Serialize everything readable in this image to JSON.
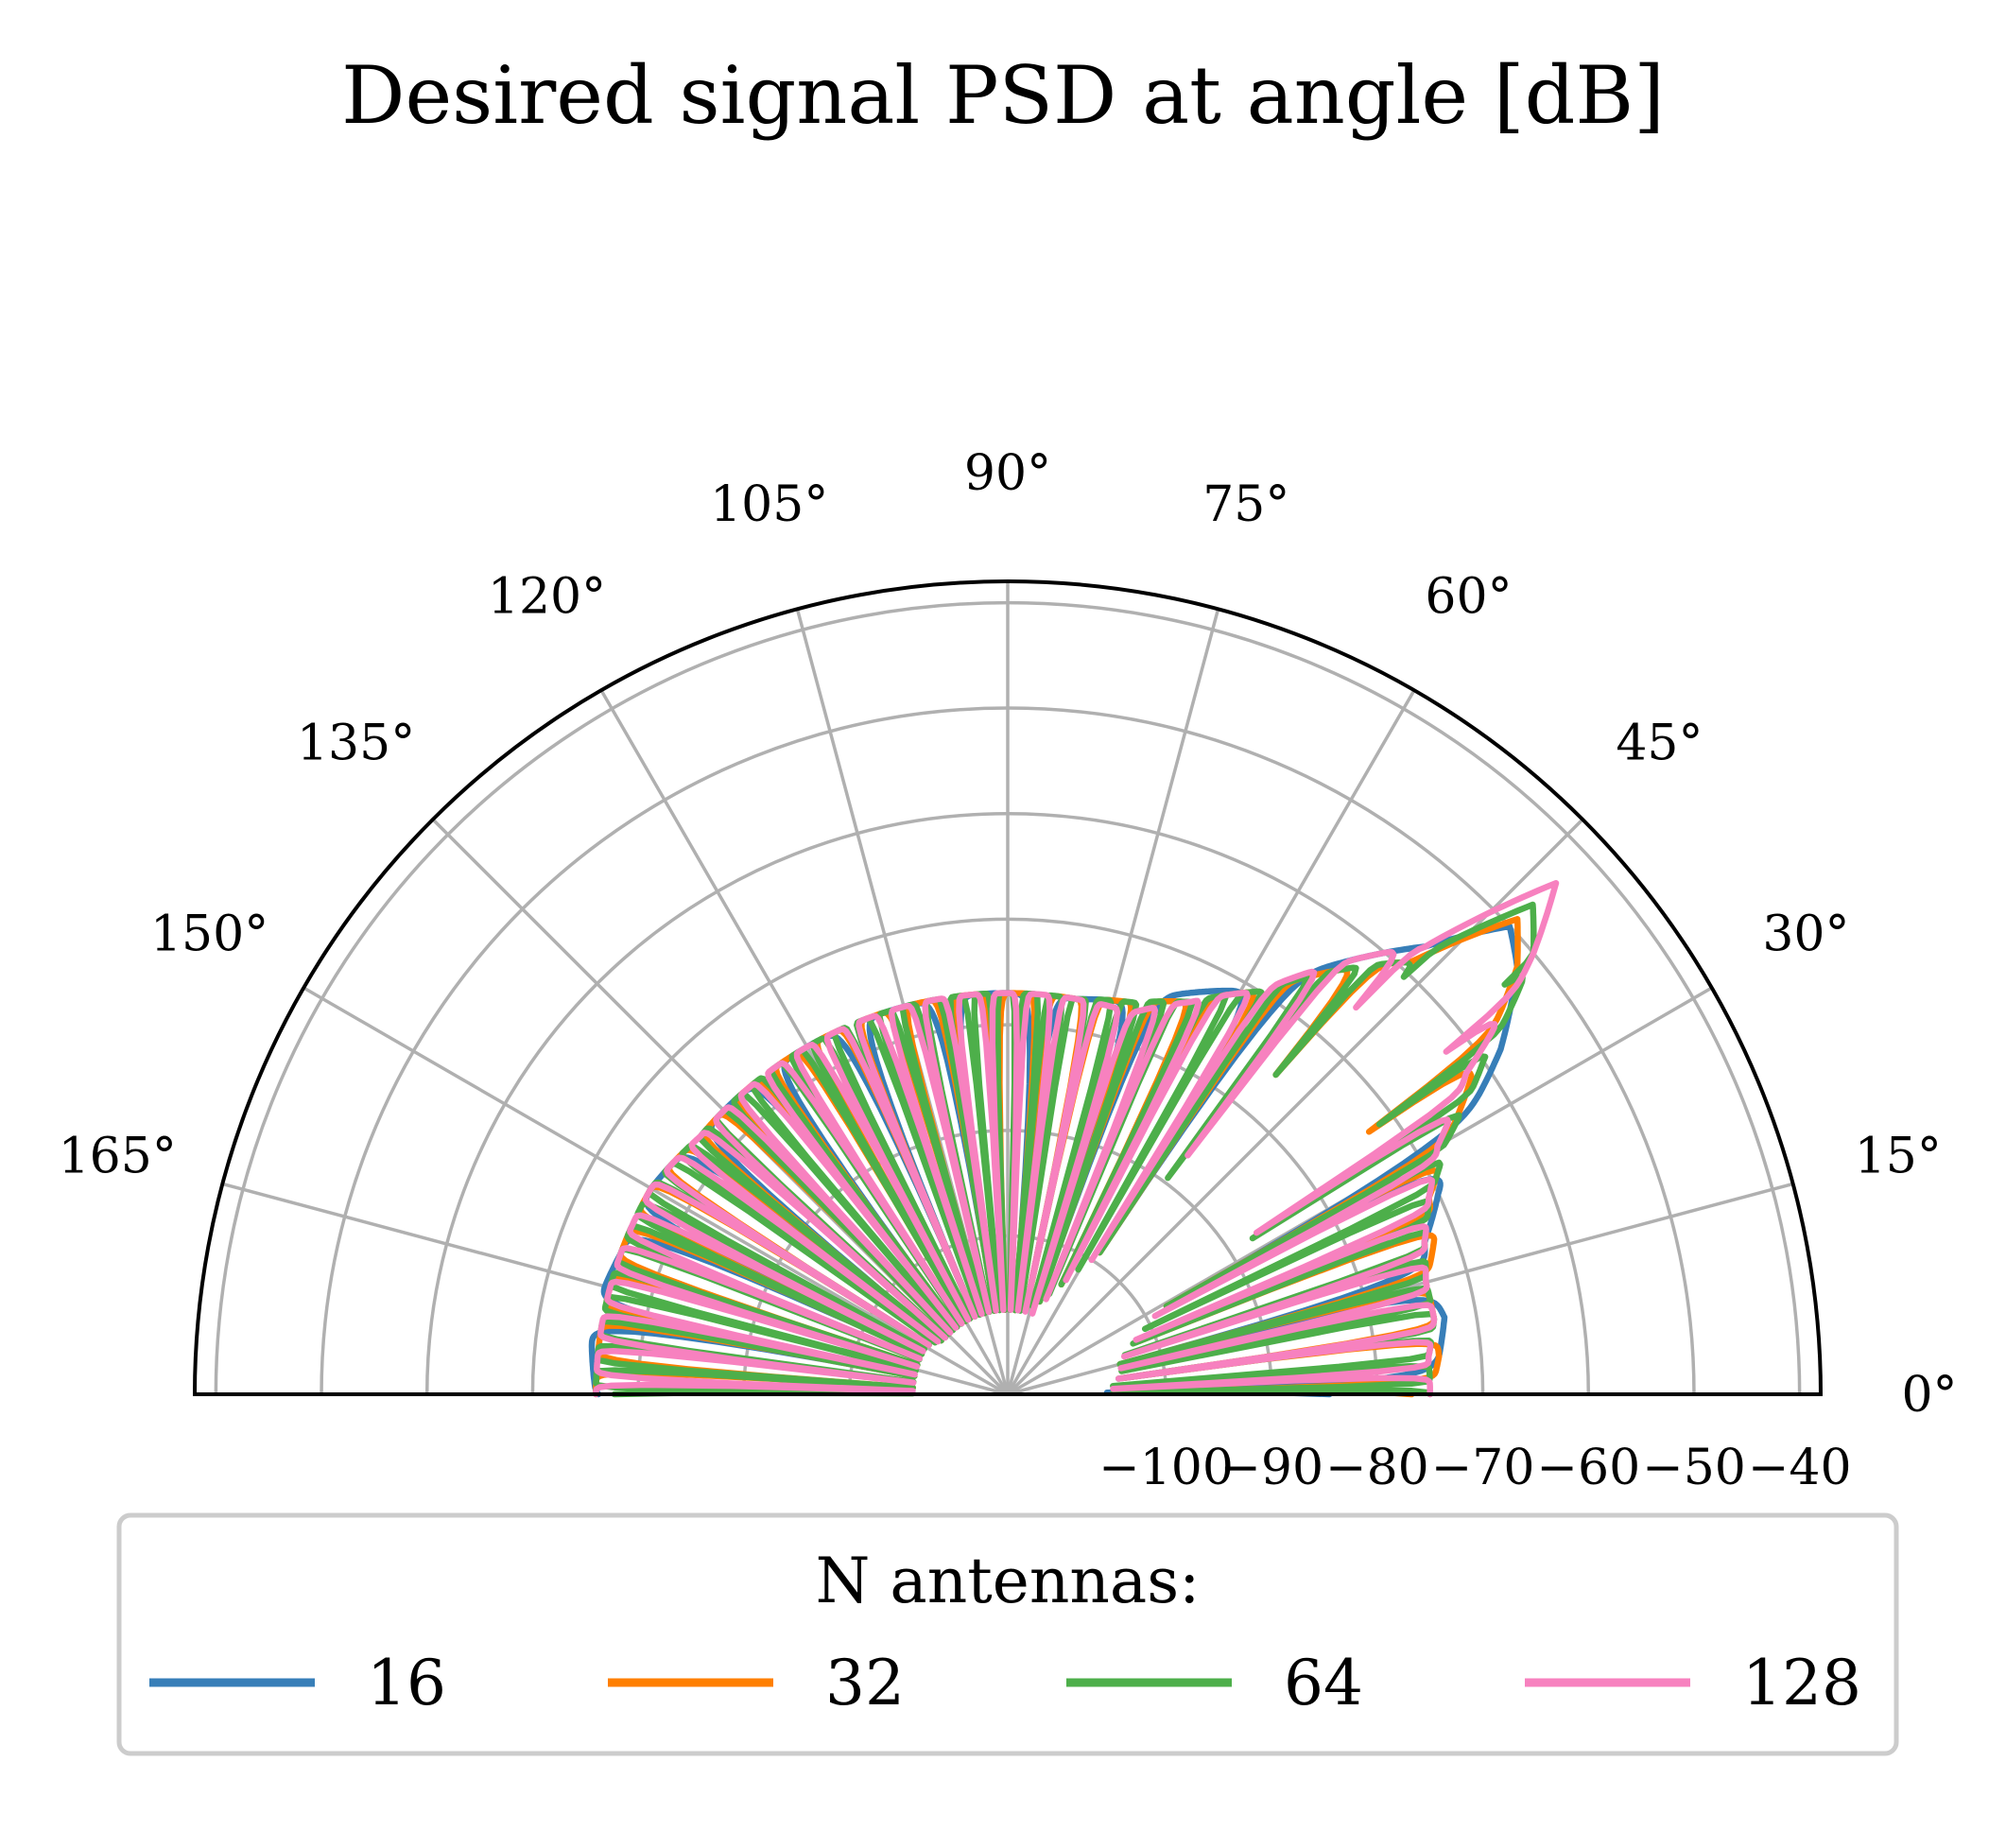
{
  "chart_data": {
    "type": "polar-line",
    "title": "Desired signal PSD at angle [dB]",
    "theta_range_deg": [
      0,
      180
    ],
    "theta_ticks_deg": [
      0,
      15,
      30,
      45,
      60,
      75,
      90,
      105,
      120,
      135,
      150,
      165
    ],
    "theta_tick_labels": [
      "0°",
      "15°",
      "30°",
      "45°",
      "60°",
      "75°",
      "90°",
      "105°",
      "120°",
      "135°",
      "150°",
      "165°"
    ],
    "r_range": [
      -115,
      -38
    ],
    "r_ticks": [
      -100,
      -90,
      -80,
      -70,
      -60,
      -50,
      -40
    ],
    "r_tick_labels": [
      "−100",
      "−90",
      "−80",
      "−70",
      "−60",
      "−50",
      "−40"
    ],
    "grid": true,
    "legend": {
      "title": "N antennas:",
      "placement": "bottom"
    },
    "main_lobe_deg": 43,
    "series": [
      {
        "name": "16",
        "color": "#377eb8",
        "ripple_period_deg": 14,
        "points": [
          [
            0,
            -76
          ],
          [
            5,
            -74
          ],
          [
            10,
            -73
          ],
          [
            15,
            -74
          ],
          [
            20,
            -73
          ],
          [
            25,
            -70
          ],
          [
            30,
            -66
          ],
          [
            35,
            -58
          ],
          [
            40,
            -52
          ],
          [
            43,
            -50
          ],
          [
            47,
            -57
          ],
          [
            52,
            -63
          ],
          [
            58,
            -70
          ],
          [
            65,
            -73
          ],
          [
            72,
            -76
          ],
          [
            80,
            -77
          ],
          [
            90,
            -77
          ],
          [
            100,
            -77
          ],
          [
            110,
            -77
          ],
          [
            120,
            -77
          ],
          [
            130,
            -77
          ],
          [
            140,
            -77
          ],
          [
            150,
            -76
          ],
          [
            160,
            -76
          ],
          [
            170,
            -75
          ],
          [
            180,
            -76
          ]
        ]
      },
      {
        "name": "32",
        "color": "#ff7f00",
        "ripple_period_deg": 7,
        "points": [
          [
            0,
            -75
          ],
          [
            5,
            -74
          ],
          [
            10,
            -74
          ],
          [
            15,
            -74
          ],
          [
            20,
            -72
          ],
          [
            25,
            -71
          ],
          [
            30,
            -67
          ],
          [
            35,
            -61
          ],
          [
            40,
            -52
          ],
          [
            43,
            -49
          ],
          [
            47,
            -59
          ],
          [
            52,
            -64
          ],
          [
            58,
            -70
          ],
          [
            65,
            -74
          ],
          [
            72,
            -76
          ],
          [
            80,
            -77
          ],
          [
            90,
            -77
          ],
          [
            100,
            -77
          ],
          [
            110,
            -77
          ],
          [
            120,
            -77
          ],
          [
            130,
            -77
          ],
          [
            140,
            -77
          ],
          [
            150,
            -76
          ],
          [
            160,
            -76
          ],
          [
            170,
            -76
          ],
          [
            180,
            -76
          ]
        ]
      },
      {
        "name": "64",
        "color": "#4daf4a",
        "ripple_period_deg": 3.5,
        "points": [
          [
            0,
            -75
          ],
          [
            5,
            -75
          ],
          [
            10,
            -74
          ],
          [
            15,
            -74
          ],
          [
            20,
            -73
          ],
          [
            25,
            -71
          ],
          [
            30,
            -67
          ],
          [
            35,
            -60
          ],
          [
            40,
            -50
          ],
          [
            43,
            -47
          ],
          [
            47,
            -59
          ],
          [
            52,
            -64
          ],
          [
            58,
            -70
          ],
          [
            65,
            -74
          ],
          [
            72,
            -76
          ],
          [
            80,
            -77
          ],
          [
            90,
            -77
          ],
          [
            100,
            -77
          ],
          [
            110,
            -77
          ],
          [
            120,
            -77
          ],
          [
            130,
            -77
          ],
          [
            140,
            -77
          ],
          [
            150,
            -76
          ],
          [
            160,
            -76
          ],
          [
            170,
            -76
          ],
          [
            180,
            -76
          ]
        ]
      },
      {
        "name": "128",
        "color": "#f781bf",
        "ripple_period_deg": 5,
        "points": [
          [
            0,
            -75
          ],
          [
            5,
            -75
          ],
          [
            10,
            -74
          ],
          [
            15,
            -74
          ],
          [
            20,
            -73
          ],
          [
            25,
            -71
          ],
          [
            30,
            -68
          ],
          [
            35,
            -62
          ],
          [
            40,
            -50
          ],
          [
            43,
            -44
          ],
          [
            47,
            -57
          ],
          [
            52,
            -63
          ],
          [
            58,
            -70
          ],
          [
            65,
            -74
          ],
          [
            72,
            -77
          ],
          [
            80,
            -77
          ],
          [
            90,
            -77
          ],
          [
            100,
            -77
          ],
          [
            110,
            -77
          ],
          [
            120,
            -77
          ],
          [
            130,
            -77
          ],
          [
            140,
            -77
          ],
          [
            150,
            -76
          ],
          [
            160,
            -76
          ],
          [
            170,
            -76
          ],
          [
            180,
            -76
          ]
        ]
      }
    ]
  }
}
